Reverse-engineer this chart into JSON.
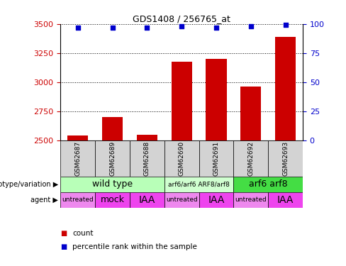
{
  "title": "GDS1408 / 256765_at",
  "samples": [
    "GSM62687",
    "GSM62689",
    "GSM62688",
    "GSM62690",
    "GSM62691",
    "GSM62692",
    "GSM62693"
  ],
  "counts": [
    2540,
    2700,
    2545,
    3175,
    3200,
    2960,
    3390
  ],
  "percentile_ranks": [
    97,
    97,
    97,
    98,
    97,
    98,
    99
  ],
  "ylim_left": [
    2500,
    3500
  ],
  "yticks_left": [
    2500,
    2750,
    3000,
    3250,
    3500
  ],
  "ylim_right": [
    0,
    100
  ],
  "yticks_right": [
    0,
    25,
    50,
    75,
    100
  ],
  "bar_color": "#cc0000",
  "dot_color": "#0000cc",
  "sample_cell_color": "#d3d3d3",
  "genotype_groups": [
    {
      "label": "wild type",
      "span": [
        0,
        3
      ],
      "color": "#b8ffb8",
      "text_size": 9
    },
    {
      "label": "arf6/arf6 ARF8/arf8",
      "span": [
        3,
        5
      ],
      "color": "#d0ffd0",
      "text_size": 6.5
    },
    {
      "label": "arf6 arf8",
      "span": [
        5,
        7
      ],
      "color": "#44dd44",
      "text_size": 9
    }
  ],
  "agent_groups": [
    {
      "label": "untreated",
      "span": [
        0,
        1
      ],
      "color": "#ee88ee",
      "text_size": 6.5
    },
    {
      "label": "mock",
      "span": [
        1,
        2
      ],
      "color": "#ee44ee",
      "text_size": 9
    },
    {
      "label": "IAA",
      "span": [
        2,
        3
      ],
      "color": "#ee44ee",
      "text_size": 10
    },
    {
      "label": "untreated",
      "span": [
        3,
        4
      ],
      "color": "#ee88ee",
      "text_size": 6.5
    },
    {
      "label": "IAA",
      "span": [
        4,
        5
      ],
      "color": "#ee44ee",
      "text_size": 10
    },
    {
      "label": "untreated",
      "span": [
        5,
        6
      ],
      "color": "#ee88ee",
      "text_size": 6.5
    },
    {
      "label": "IAA",
      "span": [
        6,
        7
      ],
      "color": "#ee44ee",
      "text_size": 10
    }
  ],
  "legend_count_color": "#cc0000",
  "legend_pct_color": "#0000cc",
  "left_axis_color": "#cc0000",
  "right_axis_color": "#0000cc",
  "bar_width": 0.6
}
